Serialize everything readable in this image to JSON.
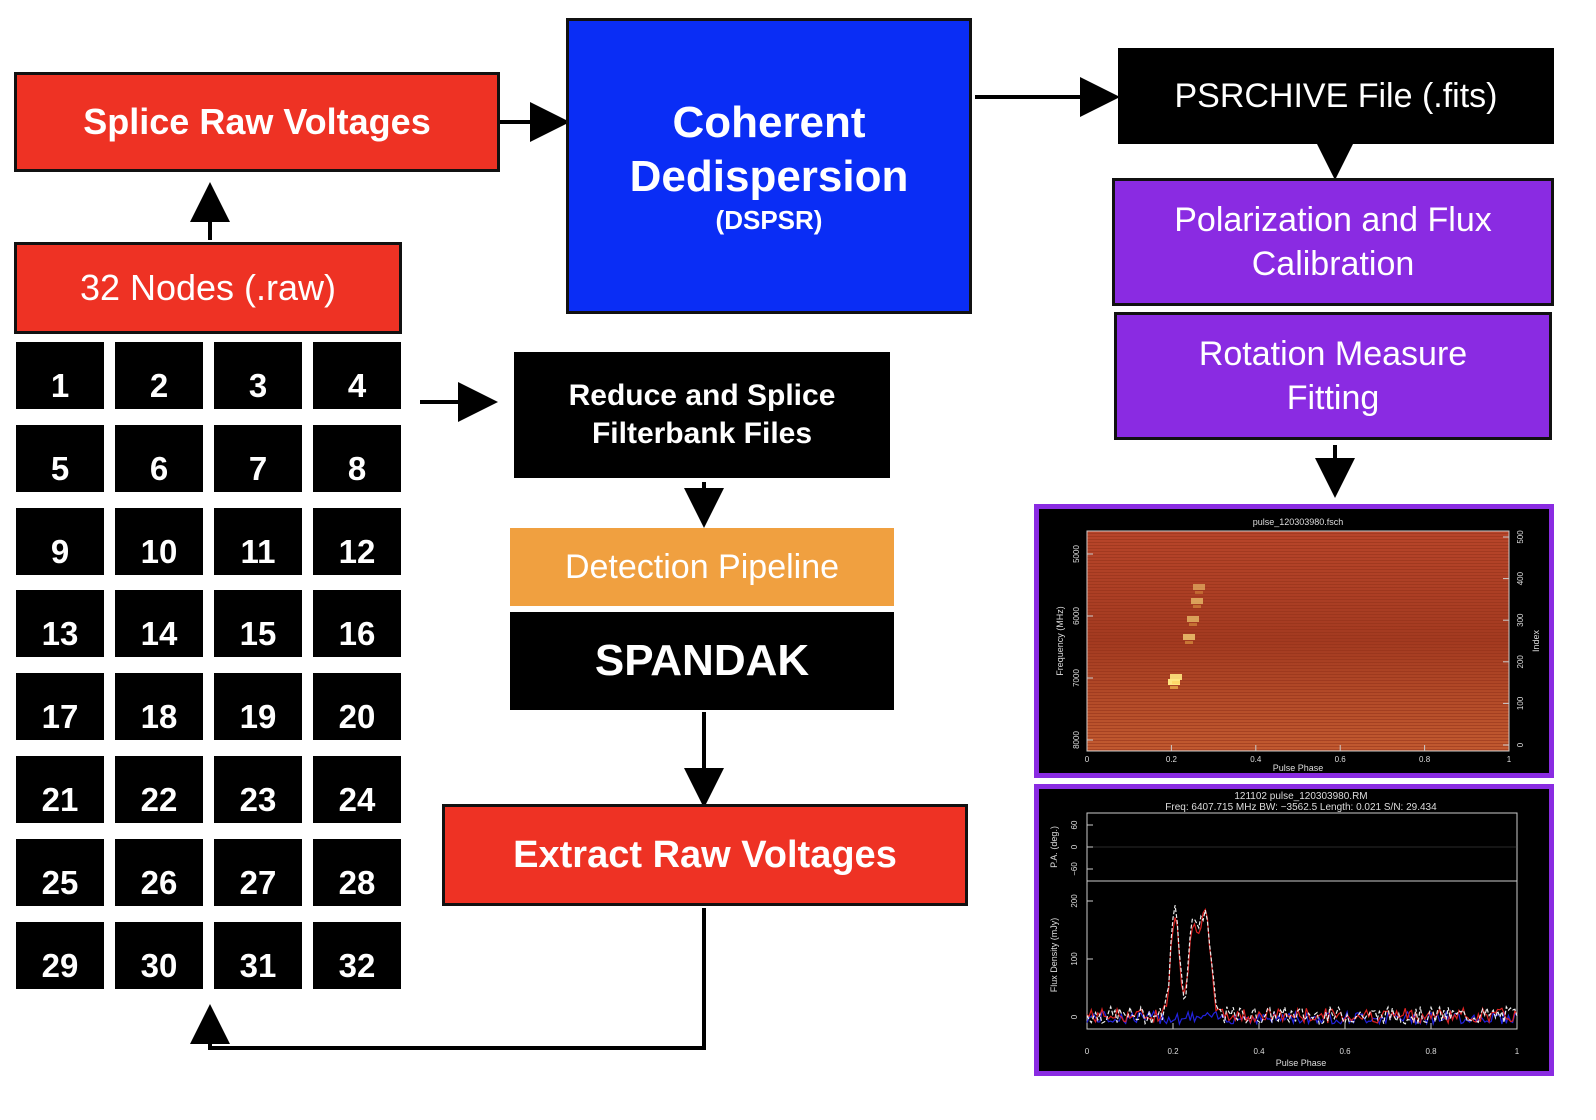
{
  "boxes": {
    "splice_raw": "Splice Raw Voltages",
    "nodes_raw": "32 Nodes (.raw)",
    "coherent_line1": "Coherent",
    "coherent_line2": "Dedispersion",
    "coherent_sub": "(DSPSR)",
    "psrchive": "PSRCHIVE File (.fits)",
    "polcal_line1": "Polarization and Flux",
    "polcal_line2": "Calibration",
    "rm_line1": "Rotation Measure",
    "rm_line2": "Fitting",
    "reduce_line1": "Reduce and Splice",
    "reduce_line2": "Filterbank Files",
    "detection": "Detection Pipeline",
    "spandak": "SPANDAK",
    "extract": "Extract Raw Voltages"
  },
  "nodes": [
    "1",
    "2",
    "3",
    "4",
    "5",
    "6",
    "7",
    "8",
    "9",
    "10",
    "11",
    "12",
    "13",
    "14",
    "15",
    "16",
    "17",
    "18",
    "19",
    "20",
    "21",
    "22",
    "23",
    "24",
    "25",
    "26",
    "27",
    "28",
    "29",
    "30",
    "31",
    "32"
  ],
  "colors": {
    "red": "#ee3224",
    "blue": "#0a2df5",
    "purple": "#8a2be2",
    "orange": "#f0a040",
    "black": "#000000"
  },
  "waterfall": {
    "title": "pulse_120303980.fsch",
    "xlabel": "Pulse Phase",
    "ylabel": "Frequency (MHz)",
    "ylabel_right": "Index",
    "xticks": [
      "0",
      "0.2",
      "0.4",
      "0.6",
      "0.8",
      "1"
    ],
    "yticks": [
      "5000",
      "6000",
      "7000",
      "8000"
    ],
    "yticks_right": [
      "500",
      "400",
      "300",
      "200",
      "100",
      "0"
    ]
  },
  "profile": {
    "title_line1": "121102 pulse_120303980.RM",
    "title_line2": "Freq: 6407.715 MHz BW: −3562.5 Length: 0.021 S/N: 29.434",
    "pa_label": "P.A. (deg.)",
    "pa_ticks": [
      "60",
      "0",
      "−60"
    ],
    "flux_label": "Flux Density (mJy)",
    "flux_ticks": [
      "200",
      "100",
      "0"
    ],
    "xlabel": "Pulse Phase",
    "xticks": [
      "0",
      "0.2",
      "0.4",
      "0.6",
      "0.8",
      "1"
    ]
  }
}
